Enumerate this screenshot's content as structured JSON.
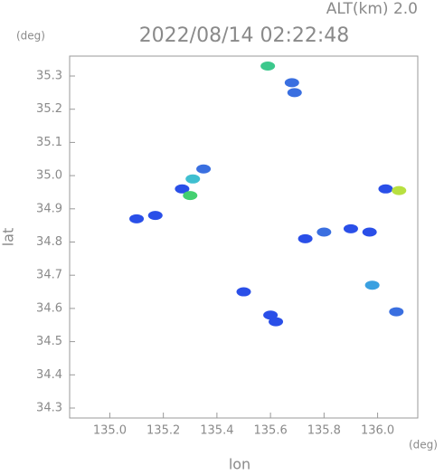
{
  "chart_data": {
    "type": "scatter",
    "title": "2022/08/14 02:22:48",
    "subtitle": "ALT(km) 2.0",
    "y_unit": "(deg)",
    "x_unit": "(deg)",
    "xlabel": "lon",
    "ylabel": "lat",
    "xlim": [
      134.85,
      136.15
    ],
    "ylim": [
      34.27,
      35.36
    ],
    "xticks": [
      {
        "value": 135,
        "label": "135.0"
      },
      135.2,
      135.4,
      135.6,
      135.8,
      {
        "value": 136,
        "label": "136.0"
      }
    ],
    "yticks": [
      34.3,
      34.4,
      34.5,
      34.6,
      34.7,
      34.8,
      34.9,
      {
        "value": 35,
        "label": "35.0"
      },
      35.1,
      35.2,
      35.3
    ],
    "x": [
      135.59,
      135.68,
      135.69,
      135.27,
      135.3,
      135.31,
      135.35,
      135.1,
      135.17,
      135.73,
      135.8,
      135.9,
      135.97,
      136.03,
      136.08,
      135.98,
      136.07,
      135.6,
      135.62,
      135.5
    ],
    "y": [
      35.33,
      35.28,
      35.25,
      34.96,
      34.94,
      34.99,
      35.02,
      34.87,
      34.88,
      34.81,
      34.83,
      34.84,
      34.83,
      34.96,
      34.955,
      34.67,
      34.59,
      34.58,
      34.56,
      34.65
    ],
    "colors": [
      "#3cc88c",
      "#3a6fe0",
      "#3a6fe0",
      "#2a4fe8",
      "#44d070",
      "#3fbfd0",
      "#3a6fe0",
      "#2a4fe8",
      "#2a4fe8",
      "#2a4fe8",
      "#3a6fe0",
      "#2a4fe8",
      "#2a4fe8",
      "#2a4fe8",
      "#b8e040",
      "#3aa0e0",
      "#3a6fe0",
      "#2a4fe8",
      "#2a4fe8",
      "#2a4fe8"
    ]
  }
}
